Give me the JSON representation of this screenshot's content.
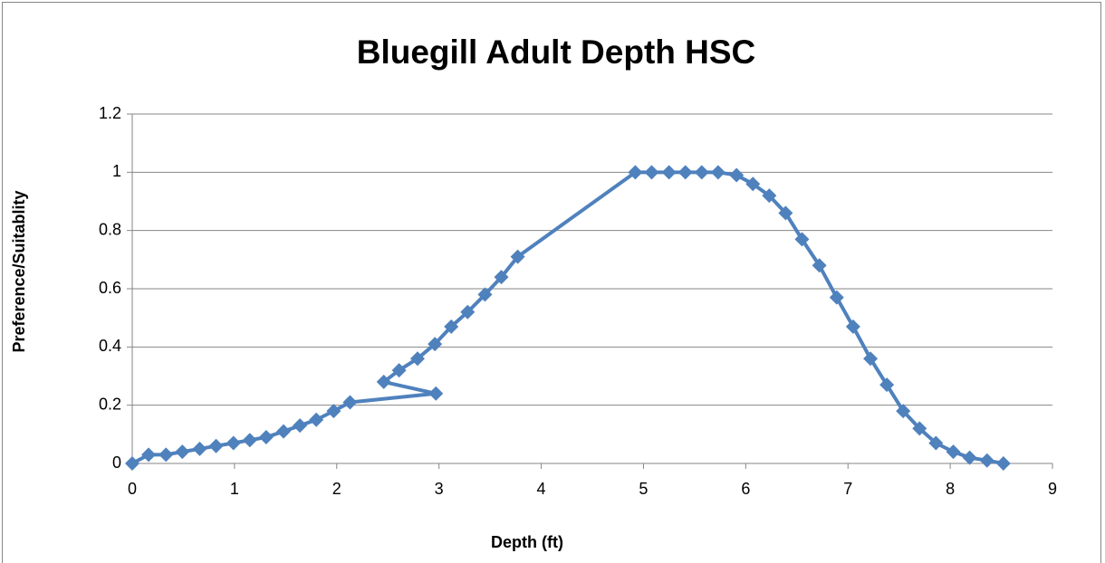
{
  "chart_data": {
    "type": "line",
    "title": "Bluegill Adult Depth HSC",
    "x_label": "Depth (ft)",
    "y_label": "Preference/Suitablity",
    "xlim": [
      0,
      9
    ],
    "xticks": [
      0,
      1,
      2,
      3,
      4,
      5,
      6,
      7,
      8,
      9
    ],
    "ylim": [
      0,
      1.2
    ],
    "yticks": [
      0,
      0.2,
      0.4,
      0.6,
      0.8,
      1,
      1.2
    ],
    "grid": true,
    "series": [
      {
        "name": "Bluegill Adult Depth HSC",
        "color": "#4f81bd",
        "x": [
          0,
          0.16,
          0.33,
          0.49,
          0.66,
          0.82,
          0.99,
          1.15,
          1.31,
          1.48,
          1.64,
          1.8,
          1.97,
          2.13,
          2.97,
          2.46,
          2.61,
          2.79,
          2.96,
          3.12,
          3.28,
          3.45,
          3.61,
          3.77,
          4.92,
          5.08,
          5.25,
          5.41,
          5.57,
          5.73,
          5.91,
          6.07,
          6.23,
          6.39,
          6.55,
          6.72,
          6.89,
          7.05,
          7.22,
          7.38,
          7.54,
          7.7,
          7.86,
          8.03,
          8.19,
          8.36,
          8.52
        ],
        "values": [
          0,
          0.03,
          0.03,
          0.04,
          0.05,
          0.06,
          0.07,
          0.08,
          0.09,
          0.11,
          0.13,
          0.15,
          0.18,
          0.21,
          0.24,
          0.28,
          0.32,
          0.36,
          0.41,
          0.47,
          0.52,
          0.58,
          0.64,
          0.71,
          1,
          1,
          1,
          1,
          1,
          1,
          0.99,
          0.96,
          0.92,
          0.86,
          0.77,
          0.68,
          0.57,
          0.47,
          0.36,
          0.27,
          0.18,
          0.12,
          0.07,
          0.04,
          0.02,
          0.01,
          0
        ]
      }
    ]
  }
}
